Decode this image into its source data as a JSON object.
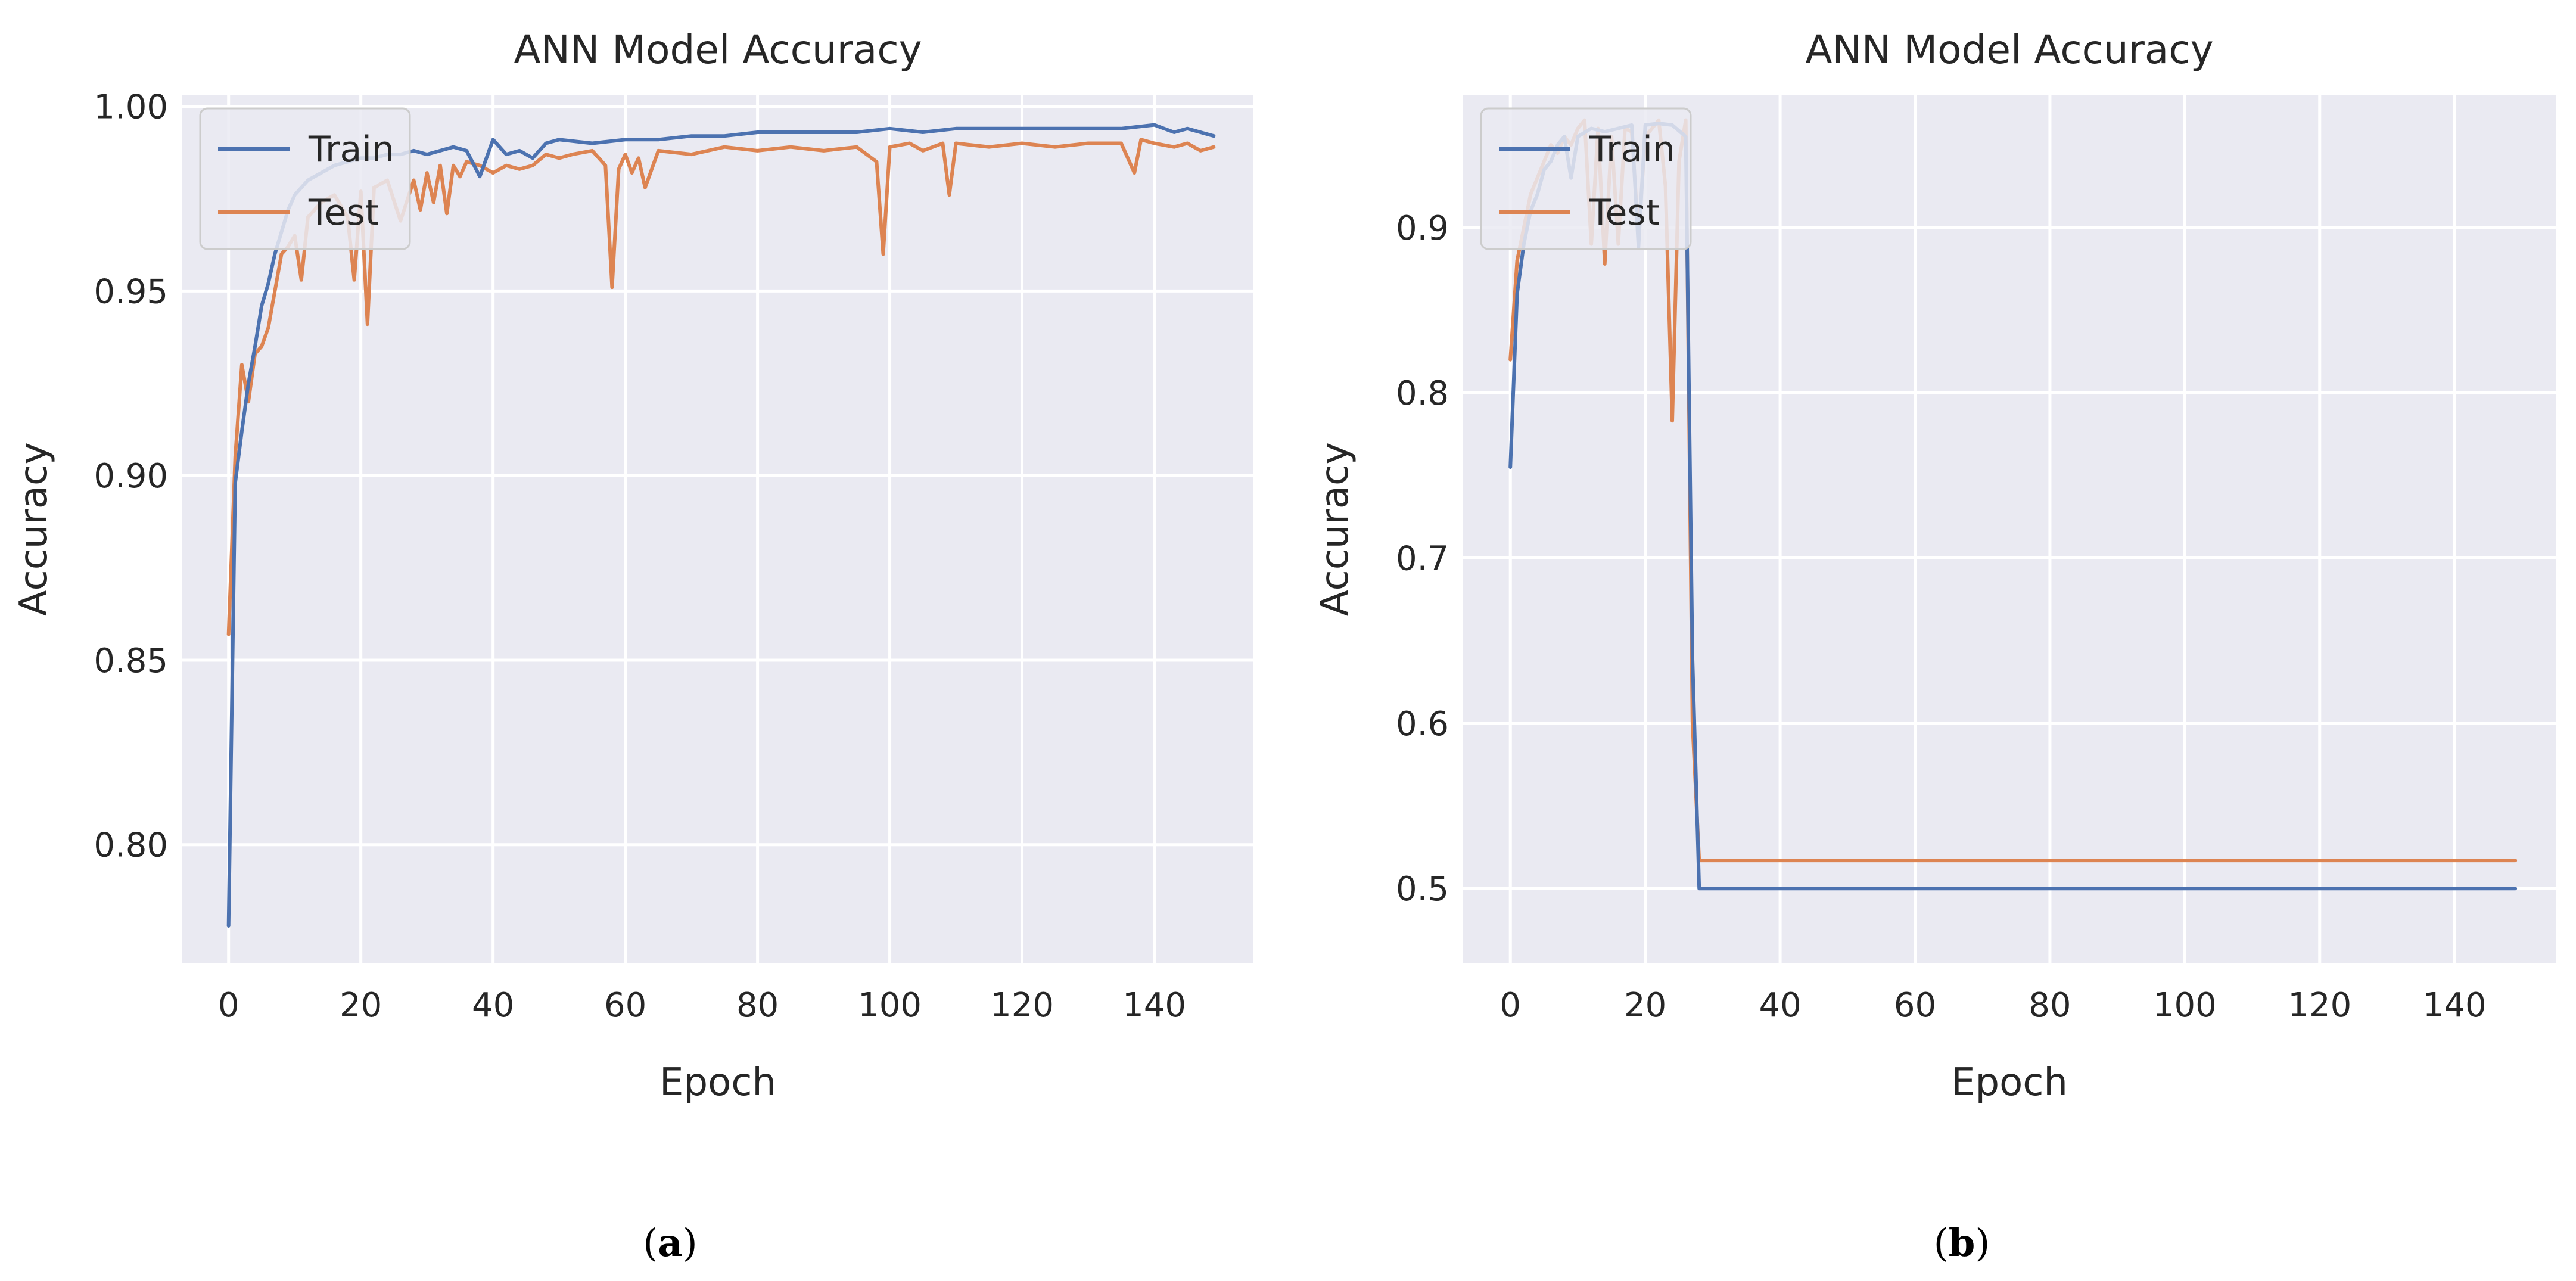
{
  "colors": {
    "train": "#4c72b0",
    "test": "#dd8452",
    "plot_bg": "#eaeaf2",
    "grid": "#ffffff"
  },
  "chart_data": [
    {
      "type": "line",
      "panel": "a",
      "caption": "a",
      "title": "ANN Model Accuracy",
      "xlabel": "Epoch",
      "ylabel": "Accuracy",
      "xlim": [
        -7,
        155
      ],
      "ylim": [
        0.768,
        1.003
      ],
      "xticks": [
        0,
        20,
        40,
        60,
        80,
        100,
        120,
        140
      ],
      "xtick_labels": [
        "0",
        "20",
        "40",
        "60",
        "80",
        "100",
        "120",
        "140"
      ],
      "yticks": [
        0.8,
        0.85,
        0.9,
        0.95,
        1.0
      ],
      "ytick_labels": [
        "0.80",
        "0.85",
        "0.90",
        "0.95",
        "1.00"
      ],
      "legend": {
        "position": "top-left",
        "entries": [
          "Train",
          "Test"
        ]
      },
      "series": [
        {
          "name": "Train",
          "x": [
            0,
            1,
            2,
            3,
            4,
            5,
            6,
            7,
            8,
            9,
            10,
            12,
            14,
            16,
            18,
            20,
            22,
            24,
            26,
            28,
            30,
            32,
            34,
            36,
            38,
            40,
            42,
            44,
            46,
            48,
            50,
            55,
            60,
            65,
            70,
            75,
            80,
            85,
            90,
            95,
            100,
            105,
            110,
            115,
            120,
            125,
            130,
            135,
            140,
            143,
            145,
            147,
            149
          ],
          "values": [
            0.778,
            0.898,
            0.912,
            0.925,
            0.935,
            0.946,
            0.952,
            0.96,
            0.966,
            0.972,
            0.976,
            0.98,
            0.982,
            0.984,
            0.985,
            0.986,
            0.986,
            0.987,
            0.987,
            0.988,
            0.987,
            0.988,
            0.989,
            0.988,
            0.981,
            0.991,
            0.987,
            0.988,
            0.986,
            0.99,
            0.991,
            0.99,
            0.991,
            0.991,
            0.992,
            0.992,
            0.993,
            0.993,
            0.993,
            0.993,
            0.994,
            0.993,
            0.994,
            0.994,
            0.994,
            0.994,
            0.994,
            0.994,
            0.995,
            0.993,
            0.994,
            0.993,
            0.992
          ]
        },
        {
          "name": "Test",
          "x": [
            0,
            1,
            2,
            3,
            4,
            5,
            6,
            7,
            8,
            9,
            10,
            11,
            12,
            14,
            16,
            18,
            19,
            20,
            21,
            22,
            24,
            26,
            28,
            29,
            30,
            31,
            32,
            33,
            34,
            35,
            36,
            38,
            40,
            42,
            44,
            46,
            48,
            50,
            52,
            55,
            57,
            58,
            59,
            60,
            61,
            62,
            63,
            65,
            70,
            75,
            80,
            85,
            90,
            95,
            98,
            99,
            100,
            103,
            105,
            108,
            109,
            110,
            115,
            120,
            125,
            130,
            135,
            137,
            138,
            140,
            143,
            145,
            147,
            149
          ],
          "values": [
            0.857,
            0.905,
            0.93,
            0.92,
            0.933,
            0.935,
            0.94,
            0.95,
            0.96,
            0.962,
            0.965,
            0.953,
            0.97,
            0.974,
            0.976,
            0.97,
            0.953,
            0.977,
            0.941,
            0.978,
            0.98,
            0.969,
            0.98,
            0.972,
            0.982,
            0.974,
            0.984,
            0.971,
            0.984,
            0.981,
            0.985,
            0.984,
            0.982,
            0.984,
            0.983,
            0.984,
            0.987,
            0.986,
            0.987,
            0.988,
            0.984,
            0.951,
            0.983,
            0.987,
            0.982,
            0.986,
            0.978,
            0.988,
            0.987,
            0.989,
            0.988,
            0.989,
            0.988,
            0.989,
            0.985,
            0.96,
            0.989,
            0.99,
            0.988,
            0.99,
            0.976,
            0.99,
            0.989,
            0.99,
            0.989,
            0.99,
            0.99,
            0.982,
            0.991,
            0.99,
            0.989,
            0.99,
            0.988,
            0.989
          ]
        }
      ]
    },
    {
      "type": "line",
      "panel": "b",
      "caption": "b",
      "title": "ANN Model Accuracy",
      "xlabel": "Epoch",
      "ylabel": "Accuracy",
      "xlim": [
        -7,
        155
      ],
      "ylim": [
        0.455,
        0.98
      ],
      "xticks": [
        0,
        20,
        40,
        60,
        80,
        100,
        120,
        140
      ],
      "xtick_labels": [
        "0",
        "20",
        "40",
        "60",
        "80",
        "100",
        "120",
        "140"
      ],
      "yticks": [
        0.5,
        0.6,
        0.7,
        0.8,
        0.9
      ],
      "ytick_labels": [
        "0.5",
        "0.6",
        "0.7",
        "0.8",
        "0.9"
      ],
      "legend": {
        "position": "top-left",
        "entries": [
          "Train",
          "Test"
        ]
      },
      "series": [
        {
          "name": "Train",
          "x": [
            0,
            1,
            2,
            3,
            4,
            5,
            6,
            7,
            8,
            9,
            10,
            12,
            14,
            16,
            18,
            19,
            20,
            22,
            24,
            26,
            27,
            28,
            30,
            50,
            100,
            149
          ],
          "values": [
            0.755,
            0.86,
            0.89,
            0.91,
            0.92,
            0.935,
            0.94,
            0.95,
            0.955,
            0.93,
            0.955,
            0.96,
            0.958,
            0.96,
            0.962,
            0.888,
            0.962,
            0.963,
            0.962,
            0.955,
            0.64,
            0.5,
            0.5,
            0.5,
            0.5,
            0.5
          ]
        },
        {
          "name": "Test",
          "x": [
            0,
            1,
            2,
            3,
            4,
            5,
            6,
            7,
            8,
            9,
            10,
            11,
            12,
            13,
            14,
            15,
            16,
            17,
            18,
            19,
            20,
            21,
            22,
            23,
            24,
            25,
            26,
            27,
            28,
            30,
            50,
            100,
            149
          ],
          "values": [
            0.82,
            0.88,
            0.9,
            0.92,
            0.93,
            0.94,
            0.95,
            0.945,
            0.955,
            0.95,
            0.96,
            0.965,
            0.89,
            0.96,
            0.878,
            0.955,
            0.89,
            0.96,
            0.958,
            0.895,
            0.955,
            0.96,
            0.965,
            0.925,
            0.783,
            0.94,
            0.965,
            0.6,
            0.517,
            0.517,
            0.517,
            0.517,
            0.517
          ]
        }
      ]
    }
  ]
}
